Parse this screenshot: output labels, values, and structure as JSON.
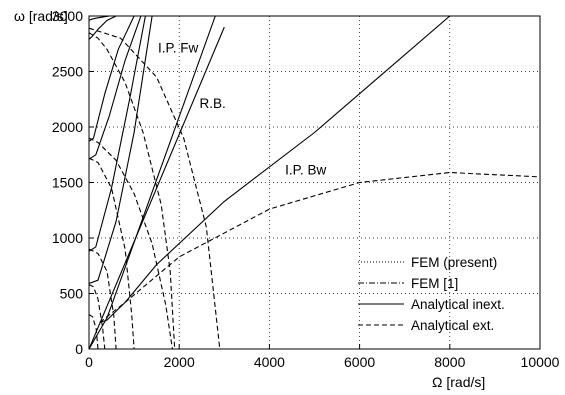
{
  "chart_data": {
    "type": "line",
    "xlabel": "Ω [rad/s]",
    "ylabel": "ω [rad/s]",
    "xlim": [
      0,
      10000
    ],
    "ylim": [
      0,
      3000
    ],
    "xticks": [
      0,
      2000,
      4000,
      6000,
      8000,
      10000
    ],
    "yticks": [
      0,
      500,
      1000,
      1500,
      2000,
      2500,
      3000
    ],
    "grid": true,
    "legend_position": "bottom-right",
    "legend": [
      {
        "label": "FEM (present)",
        "style": "dotted"
      },
      {
        "label": "FEM [1]",
        "style": "dashdot"
      },
      {
        "label": "Analytical inext.",
        "style": "solid"
      },
      {
        "label": "Analytical ext.",
        "style": "dashed"
      }
    ],
    "annotations": [
      {
        "text": "I.P. Fw",
        "x": 1530,
        "y": 2670
      },
      {
        "text": "R.B.",
        "x": 2450,
        "y": 2170
      },
      {
        "text": "I.P. Bw",
        "x": 4350,
        "y": 1570
      }
    ],
    "series": [
      {
        "style": "solid",
        "x": [
          0,
          400,
          2800
        ],
        "y": [
          0,
          280,
          3000
        ]
      },
      {
        "style": "solid",
        "x": [
          0,
          3000
        ],
        "y": [
          0,
          2900
        ]
      },
      {
        "style": "solid",
        "x": [
          240,
          400,
          800,
          1500,
          3000,
          5000,
          8000
        ],
        "y": [
          240,
          260,
          420,
          760,
          1330,
          1950,
          3000
        ]
      },
      {
        "style": "solid",
        "x": [
          0,
          200,
          600,
          1000,
          1400
        ],
        "y": [
          590,
          620,
          1150,
          1950,
          3000
        ]
      },
      {
        "style": "solid",
        "x": [
          0,
          150,
          500,
          900,
          1250
        ],
        "y": [
          880,
          920,
          1450,
          2250,
          3000
        ]
      },
      {
        "style": "solid",
        "x": [
          0,
          150,
          450,
          800,
          1150
        ],
        "y": [
          1710,
          1750,
          2100,
          2600,
          3000
        ]
      },
      {
        "style": "solid",
        "x": [
          0,
          100,
          350,
          650,
          1000
        ],
        "y": [
          1870,
          1900,
          2300,
          2700,
          3000
        ]
      },
      {
        "style": "solid",
        "x": [
          0,
          80,
          200,
          400,
          600
        ],
        "y": [
          2790,
          2820,
          2880,
          2960,
          3000
        ]
      },
      {
        "style": "solid",
        "x": [
          0,
          50,
          150,
          300,
          450
        ],
        "y": [
          2960,
          2970,
          2980,
          2990,
          3000
        ]
      },
      {
        "style": "dashed",
        "x": [
          240,
          800,
          2000,
          4000,
          6000,
          8000,
          10000
        ],
        "y": [
          240,
          420,
          830,
          1260,
          1500,
          1590,
          1550
        ]
      },
      {
        "style": "dashed",
        "x": [
          0,
          200,
          400,
          800,
          1200,
          1600,
          1800,
          1900
        ],
        "y": [
          2850,
          2800,
          2700,
          2400,
          1950,
          1300,
          700,
          0
        ]
      },
      {
        "style": "dashed",
        "x": [
          0,
          200,
          600,
          1000,
          1400,
          1700,
          1850
        ],
        "y": [
          1900,
          1860,
          1700,
          1400,
          950,
          400,
          0
        ]
      },
      {
        "style": "dashed",
        "x": [
          0,
          200,
          500,
          800,
          950,
          1000
        ],
        "y": [
          1720,
          1680,
          1450,
          900,
          300,
          0
        ]
      },
      {
        "style": "dashed",
        "x": [
          0,
          200,
          400,
          550,
          600
        ],
        "y": [
          900,
          860,
          700,
          300,
          0
        ]
      },
      {
        "style": "dashed",
        "x": [
          0,
          100,
          200,
          300,
          350
        ],
        "y": [
          580,
          560,
          450,
          200,
          0
        ]
      },
      {
        "style": "dashed",
        "x": [
          0,
          700,
          1500,
          2100,
          2600,
          2900
        ],
        "y": [
          2890,
          2800,
          2450,
          1900,
          1100,
          0
        ]
      },
      {
        "style": "dashed",
        "x": [
          0,
          80,
          160,
          200
        ],
        "y": [
          310,
          290,
          180,
          0
        ]
      }
    ]
  }
}
